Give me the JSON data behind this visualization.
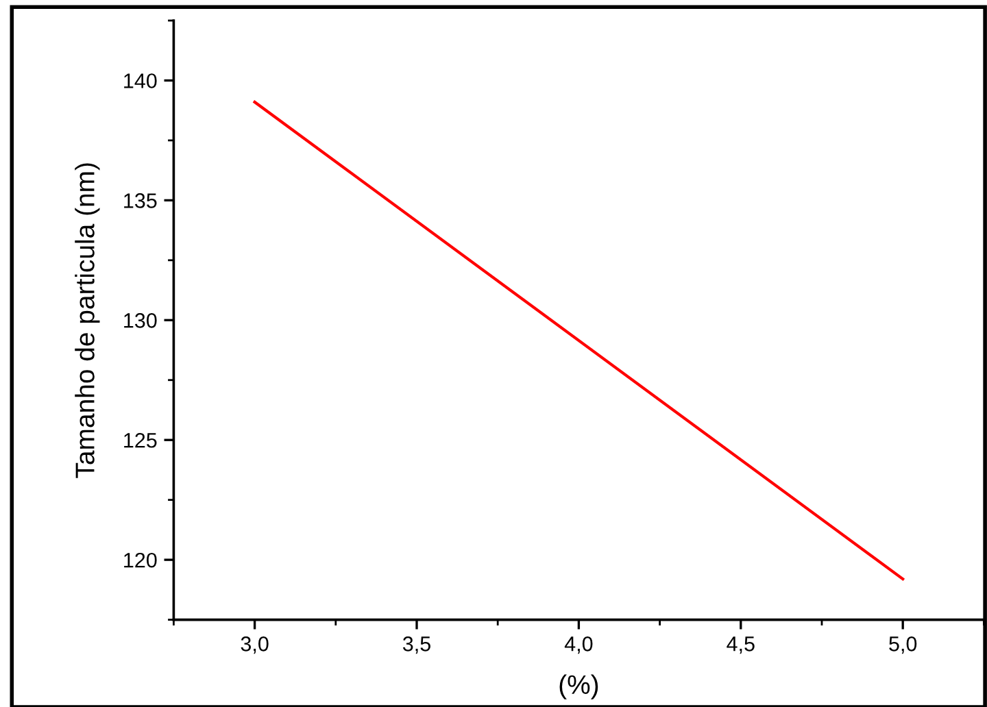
{
  "chart_data": {
    "type": "line",
    "xlabel": "(%)",
    "ylabel": "Tamanho de particula (nm)",
    "x": [
      3.0,
      5.0
    ],
    "series": [
      {
        "color": "#ff0000",
        "values": [
          139.1,
          119.2
        ]
      }
    ],
    "xlim": [
      2.75,
      5.25
    ],
    "ylim": [
      117.5,
      142.5
    ],
    "xticks": [
      {
        "value": 3.0,
        "label": "3,0"
      },
      {
        "value": 3.5,
        "label": "3,5"
      },
      {
        "value": 4.0,
        "label": "4,0"
      },
      {
        "value": 4.5,
        "label": "4,5"
      },
      {
        "value": 5.0,
        "label": "5,0"
      }
    ],
    "yticks": [
      120,
      125,
      130,
      135,
      140
    ],
    "grid": false,
    "marker": "none",
    "line_style": "solid"
  }
}
